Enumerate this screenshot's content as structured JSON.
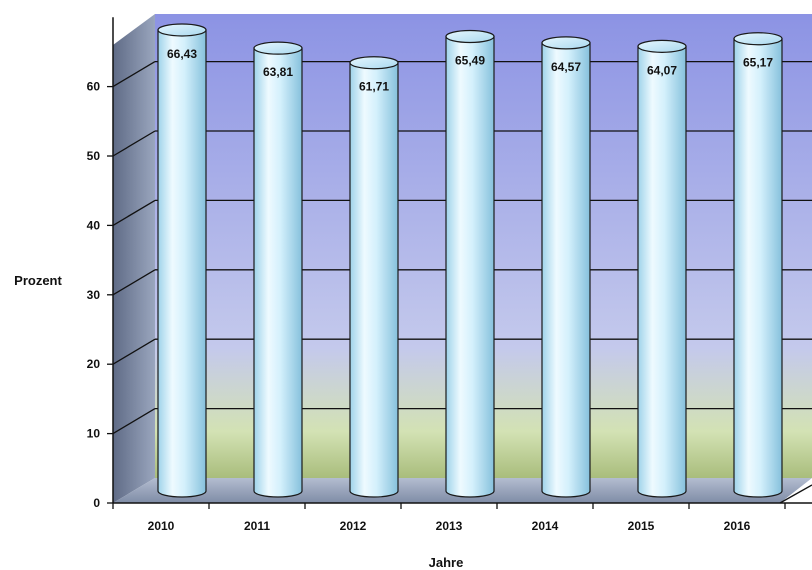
{
  "chart_data": {
    "type": "bar",
    "style": "3d-cylinder",
    "categories": [
      "2010",
      "2011",
      "2012",
      "2013",
      "2014",
      "2015",
      "2016"
    ],
    "values": [
      66.43,
      63.81,
      61.71,
      65.49,
      64.57,
      64.07,
      65.17
    ],
    "data_labels": [
      "66,43",
      "63,81",
      "61,71",
      "65,49",
      "64,57",
      "64,07",
      "65,17"
    ],
    "xlabel": "Jahre",
    "ylabel": "Prozent",
    "ylim": [
      0,
      70
    ],
    "yticks": [
      0,
      10,
      20,
      30,
      40,
      50,
      60
    ],
    "ytick_labels": [
      "0",
      "10",
      "20",
      "30",
      "40",
      "50",
      "60"
    ],
    "grid": true,
    "colors": {
      "bar": "#cfeefb",
      "bar_edge": "#1a1a1a",
      "wall_top": "#8f97e6",
      "wall_bottom": "#cde0a6",
      "side_wall": "#7f8aa0",
      "floor": "#9aa6bb"
    }
  }
}
